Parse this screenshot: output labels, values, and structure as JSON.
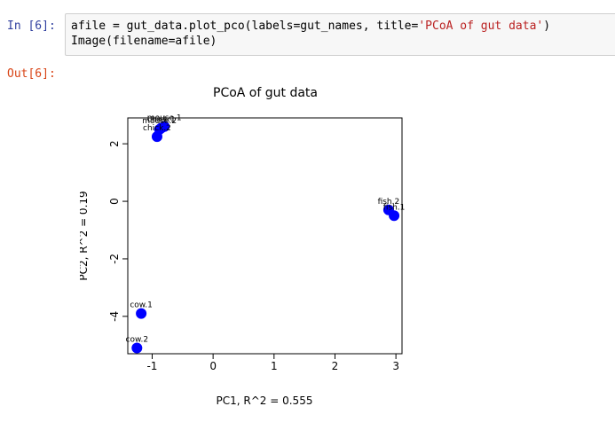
{
  "cell": {
    "in_prompt": "In [6]:",
    "out_prompt": "Out[6]:",
    "code_line1_prefix": "afile = gut_data.plot_pco(labels=gut_names, title=",
    "code_line1_string": "'PCoA of gut data'",
    "code_line1_suffix": ")",
    "code_line2": "Image(filename=afile)"
  },
  "colors": {
    "in_prompt": "#303f9f",
    "out_prompt": "#d84315",
    "string": "#ba2121",
    "points": "#0000ff"
  },
  "chart_data": {
    "type": "scatter",
    "title": "PCoA of gut data",
    "xlabel": "PC1, R^2 = 0.555",
    "ylabel": "PC2, R^2 = 0.19",
    "xlim": [
      -1.4,
      3.1
    ],
    "ylim": [
      -5.3,
      2.9
    ],
    "xticks": [
      -1,
      0,
      1,
      2,
      3
    ],
    "yticks": [
      -4,
      -2,
      0,
      2
    ],
    "grid": false,
    "points": [
      {
        "label": "cow.1",
        "x": -1.18,
        "y": -3.9
      },
      {
        "label": "cow.2",
        "x": -1.25,
        "y": -5.1
      },
      {
        "label": "fish.2",
        "x": 2.88,
        "y": -0.3
      },
      {
        "label": "fish.1",
        "x": 2.97,
        "y": -0.5
      },
      {
        "label": "mouse.1",
        "x": -0.8,
        "y": 2.6
      },
      {
        "label": "mouse.2",
        "x": -0.88,
        "y": 2.5
      },
      {
        "label": "chick.1",
        "x": -0.85,
        "y": 2.55
      },
      {
        "label": "chick.2",
        "x": -0.92,
        "y": 2.25
      }
    ]
  }
}
